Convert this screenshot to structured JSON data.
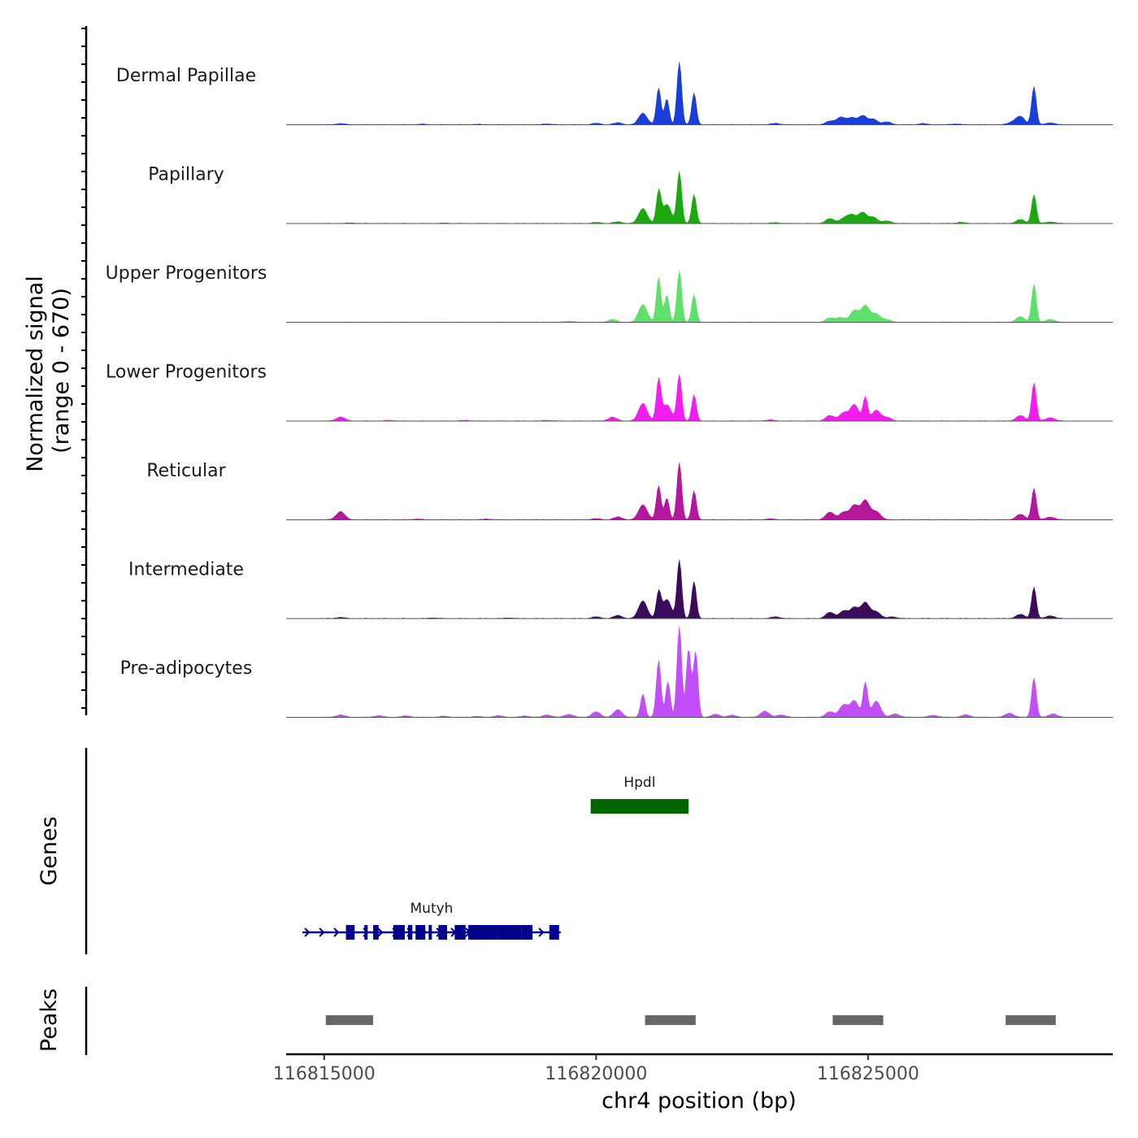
{
  "chart_data": {
    "type": "area",
    "chromosome": "chr4",
    "x_range": [
      116814300,
      116829500
    ],
    "y_range": [
      0,
      670
    ],
    "ylabel_line1": "Normalized signal",
    "ylabel_line2": "(range 0 - 670)",
    "xlabel": "chr4 position (bp)",
    "x_ticks": [
      {
        "value": 116815000,
        "label": "116815000"
      },
      {
        "value": 116820000,
        "label": "116820000"
      },
      {
        "value": 116825000,
        "label": "116825000"
      }
    ],
    "tracks": [
      {
        "name": "Dermal Papillae",
        "color": "#1A3FD9",
        "peaks": [
          [
            116815300,
            8
          ],
          [
            116816800,
            4
          ],
          [
            116817800,
            3
          ],
          [
            116819100,
            6
          ],
          [
            116820000,
            10
          ],
          [
            116820400,
            14
          ],
          [
            116820860,
            85
          ],
          [
            116821150,
            270
          ],
          [
            116821300,
            190
          ],
          [
            116821530,
            460
          ],
          [
            116821800,
            230
          ],
          [
            116823300,
            10
          ],
          [
            116824300,
            25
          ],
          [
            116824500,
            55
          ],
          [
            116824700,
            50
          ],
          [
            116824900,
            65
          ],
          [
            116825100,
            40
          ],
          [
            116825350,
            20
          ],
          [
            116826000,
            8
          ],
          [
            116826600,
            6
          ],
          [
            116827650,
            18
          ],
          [
            116827800,
            60
          ],
          [
            116828050,
            280
          ],
          [
            116828350,
            14
          ]
        ]
      },
      {
        "name": "Papillary",
        "color": "#1AAA0F",
        "peaks": [
          [
            116815500,
            4
          ],
          [
            116817200,
            3
          ],
          [
            116820000,
            8
          ],
          [
            116820400,
            12
          ],
          [
            116820860,
            110
          ],
          [
            116821150,
            230
          ],
          [
            116821300,
            140
          ],
          [
            116821530,
            380
          ],
          [
            116821800,
            210
          ],
          [
            116823300,
            6
          ],
          [
            116824300,
            35
          ],
          [
            116824550,
            35
          ],
          [
            116824700,
            60
          ],
          [
            116824900,
            80
          ],
          [
            116825100,
            45
          ],
          [
            116825350,
            18
          ],
          [
            116826700,
            8
          ],
          [
            116827800,
            28
          ],
          [
            116828050,
            210
          ],
          [
            116828350,
            12
          ]
        ]
      },
      {
        "name": "Upper Progenitors",
        "color": "#5FE06A",
        "peaks": [
          [
            116819500,
            8
          ],
          [
            116820300,
            20
          ],
          [
            116820860,
            130
          ],
          [
            116821150,
            330
          ],
          [
            116821300,
            200
          ],
          [
            116821530,
            380
          ],
          [
            116821800,
            200
          ],
          [
            116824300,
            30
          ],
          [
            116824500,
            35
          ],
          [
            116824750,
            85
          ],
          [
            116824950,
            120
          ],
          [
            116825150,
            60
          ],
          [
            116825350,
            18
          ],
          [
            116827800,
            40
          ],
          [
            116828050,
            280
          ],
          [
            116828350,
            22
          ]
        ]
      },
      {
        "name": "Lower Progenitors",
        "color": "#F21EF0",
        "peaks": [
          [
            116815300,
            30
          ],
          [
            116816200,
            5
          ],
          [
            116817600,
            5
          ],
          [
            116819100,
            5
          ],
          [
            116820300,
            28
          ],
          [
            116820860,
            130
          ],
          [
            116821150,
            300
          ],
          [
            116821300,
            120
          ],
          [
            116821530,
            340
          ],
          [
            116821800,
            190
          ],
          [
            116823200,
            8
          ],
          [
            116824300,
            40
          ],
          [
            116824550,
            60
          ],
          [
            116824750,
            120
          ],
          [
            116824950,
            170
          ],
          [
            116825150,
            80
          ],
          [
            116825350,
            25
          ],
          [
            116827800,
            40
          ],
          [
            116828050,
            280
          ],
          [
            116828350,
            25
          ]
        ]
      },
      {
        "name": "Reticular",
        "color": "#B4169E",
        "peaks": [
          [
            116815300,
            60
          ],
          [
            116816700,
            5
          ],
          [
            116818000,
            5
          ],
          [
            116820000,
            8
          ],
          [
            116820400,
            20
          ],
          [
            116820860,
            110
          ],
          [
            116821150,
            250
          ],
          [
            116821300,
            160
          ],
          [
            116821530,
            420
          ],
          [
            116821800,
            210
          ],
          [
            116823200,
            6
          ],
          [
            116824300,
            55
          ],
          [
            116824550,
            55
          ],
          [
            116824750,
            105
          ],
          [
            116824950,
            140
          ],
          [
            116825150,
            60
          ],
          [
            116827800,
            40
          ],
          [
            116828050,
            230
          ],
          [
            116828350,
            20
          ]
        ]
      },
      {
        "name": "Intermediate",
        "color": "#3C0A5A",
        "peaks": [
          [
            116815300,
            8
          ],
          [
            116817000,
            4
          ],
          [
            116818400,
            4
          ],
          [
            116820000,
            12
          ],
          [
            116820400,
            22
          ],
          [
            116820860,
            130
          ],
          [
            116821150,
            190
          ],
          [
            116821300,
            140
          ],
          [
            116821530,
            430
          ],
          [
            116821800,
            270
          ],
          [
            116823300,
            12
          ],
          [
            116824300,
            45
          ],
          [
            116824550,
            55
          ],
          [
            116824750,
            80
          ],
          [
            116824950,
            115
          ],
          [
            116825150,
            50
          ],
          [
            116825450,
            12
          ],
          [
            116827800,
            30
          ],
          [
            116828050,
            230
          ],
          [
            116828350,
            20
          ]
        ]
      },
      {
        "name": "Pre-adipocytes",
        "color": "#C14EF6",
        "peaks": [
          [
            116815300,
            18
          ],
          [
            116816000,
            12
          ],
          [
            116816500,
            10
          ],
          [
            116817200,
            8
          ],
          [
            116817800,
            6
          ],
          [
            116818200,
            12
          ],
          [
            116818700,
            10
          ],
          [
            116819100,
            18
          ],
          [
            116819500,
            22
          ],
          [
            116820000,
            40
          ],
          [
            116820400,
            55
          ],
          [
            116820860,
            170
          ],
          [
            116821150,
            420
          ],
          [
            116821320,
            260
          ],
          [
            116821530,
            670
          ],
          [
            116821700,
            500
          ],
          [
            116821830,
            480
          ],
          [
            116822200,
            22
          ],
          [
            116822500,
            15
          ],
          [
            116823100,
            45
          ],
          [
            116823400,
            18
          ],
          [
            116824300,
            40
          ],
          [
            116824550,
            90
          ],
          [
            116824750,
            120
          ],
          [
            116824950,
            250
          ],
          [
            116825150,
            120
          ],
          [
            116825500,
            25
          ],
          [
            116826200,
            15
          ],
          [
            116826800,
            18
          ],
          [
            116827600,
            30
          ],
          [
            116828050,
            290
          ],
          [
            116828400,
            25
          ]
        ]
      }
    ],
    "genes": [
      {
        "name": "Hpdl",
        "color": "#006400",
        "strand": "+",
        "start": 116819900,
        "end": 116821700,
        "exons": [
          [
            116819900,
            116821700
          ]
        ]
      },
      {
        "name": "Mutyh",
        "color": "#00008B",
        "strand": "+",
        "start": 116814600,
        "end": 116819350,
        "exons": [
          [
            116815400,
            116815560
          ],
          [
            116815740,
            116815800
          ],
          [
            116815900,
            116816000
          ],
          [
            116816270,
            116816480
          ],
          [
            116816540,
            116816620
          ],
          [
            116816680,
            116816860
          ],
          [
            116816920,
            116816980
          ],
          [
            116817100,
            116817260
          ],
          [
            116817400,
            116817600
          ],
          [
            116817650,
            116817880
          ],
          [
            116817880,
            116818180
          ],
          [
            116818180,
            116818380
          ],
          [
            116818380,
            116818630
          ],
          [
            116818630,
            116818830
          ],
          [
            116819140,
            116819320
          ]
        ]
      }
    ],
    "peak_regions": [
      [
        116815030,
        116815900
      ],
      [
        116820900,
        116821830
      ],
      [
        116824350,
        116825280
      ],
      [
        116827530,
        116828450
      ]
    ]
  }
}
